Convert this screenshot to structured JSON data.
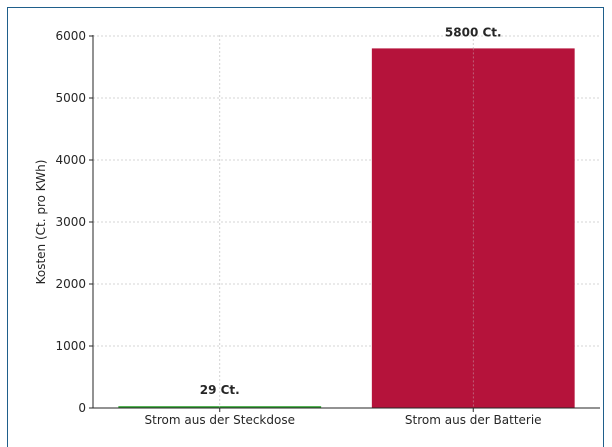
{
  "chart_data": {
    "type": "bar",
    "title": "",
    "xlabel": "",
    "ylabel": "Kosten (Ct. pro KWh)",
    "categories": [
      "Strom aus der Steckdose",
      "Strom aus der Batterie"
    ],
    "values": [
      29,
      5800
    ],
    "bar_colors": [
      "#2ca02c",
      "#b5133b"
    ],
    "data_labels": [
      "29 Ct.",
      "5800 Ct."
    ],
    "ylim": [
      0,
      6000
    ],
    "yticks": [
      0,
      1000,
      2000,
      3000,
      4000,
      5000,
      6000
    ],
    "ytick_labels": [
      "0",
      "1000",
      "2000",
      "3000",
      "4000",
      "5000",
      "6000"
    ],
    "grid": true
  }
}
